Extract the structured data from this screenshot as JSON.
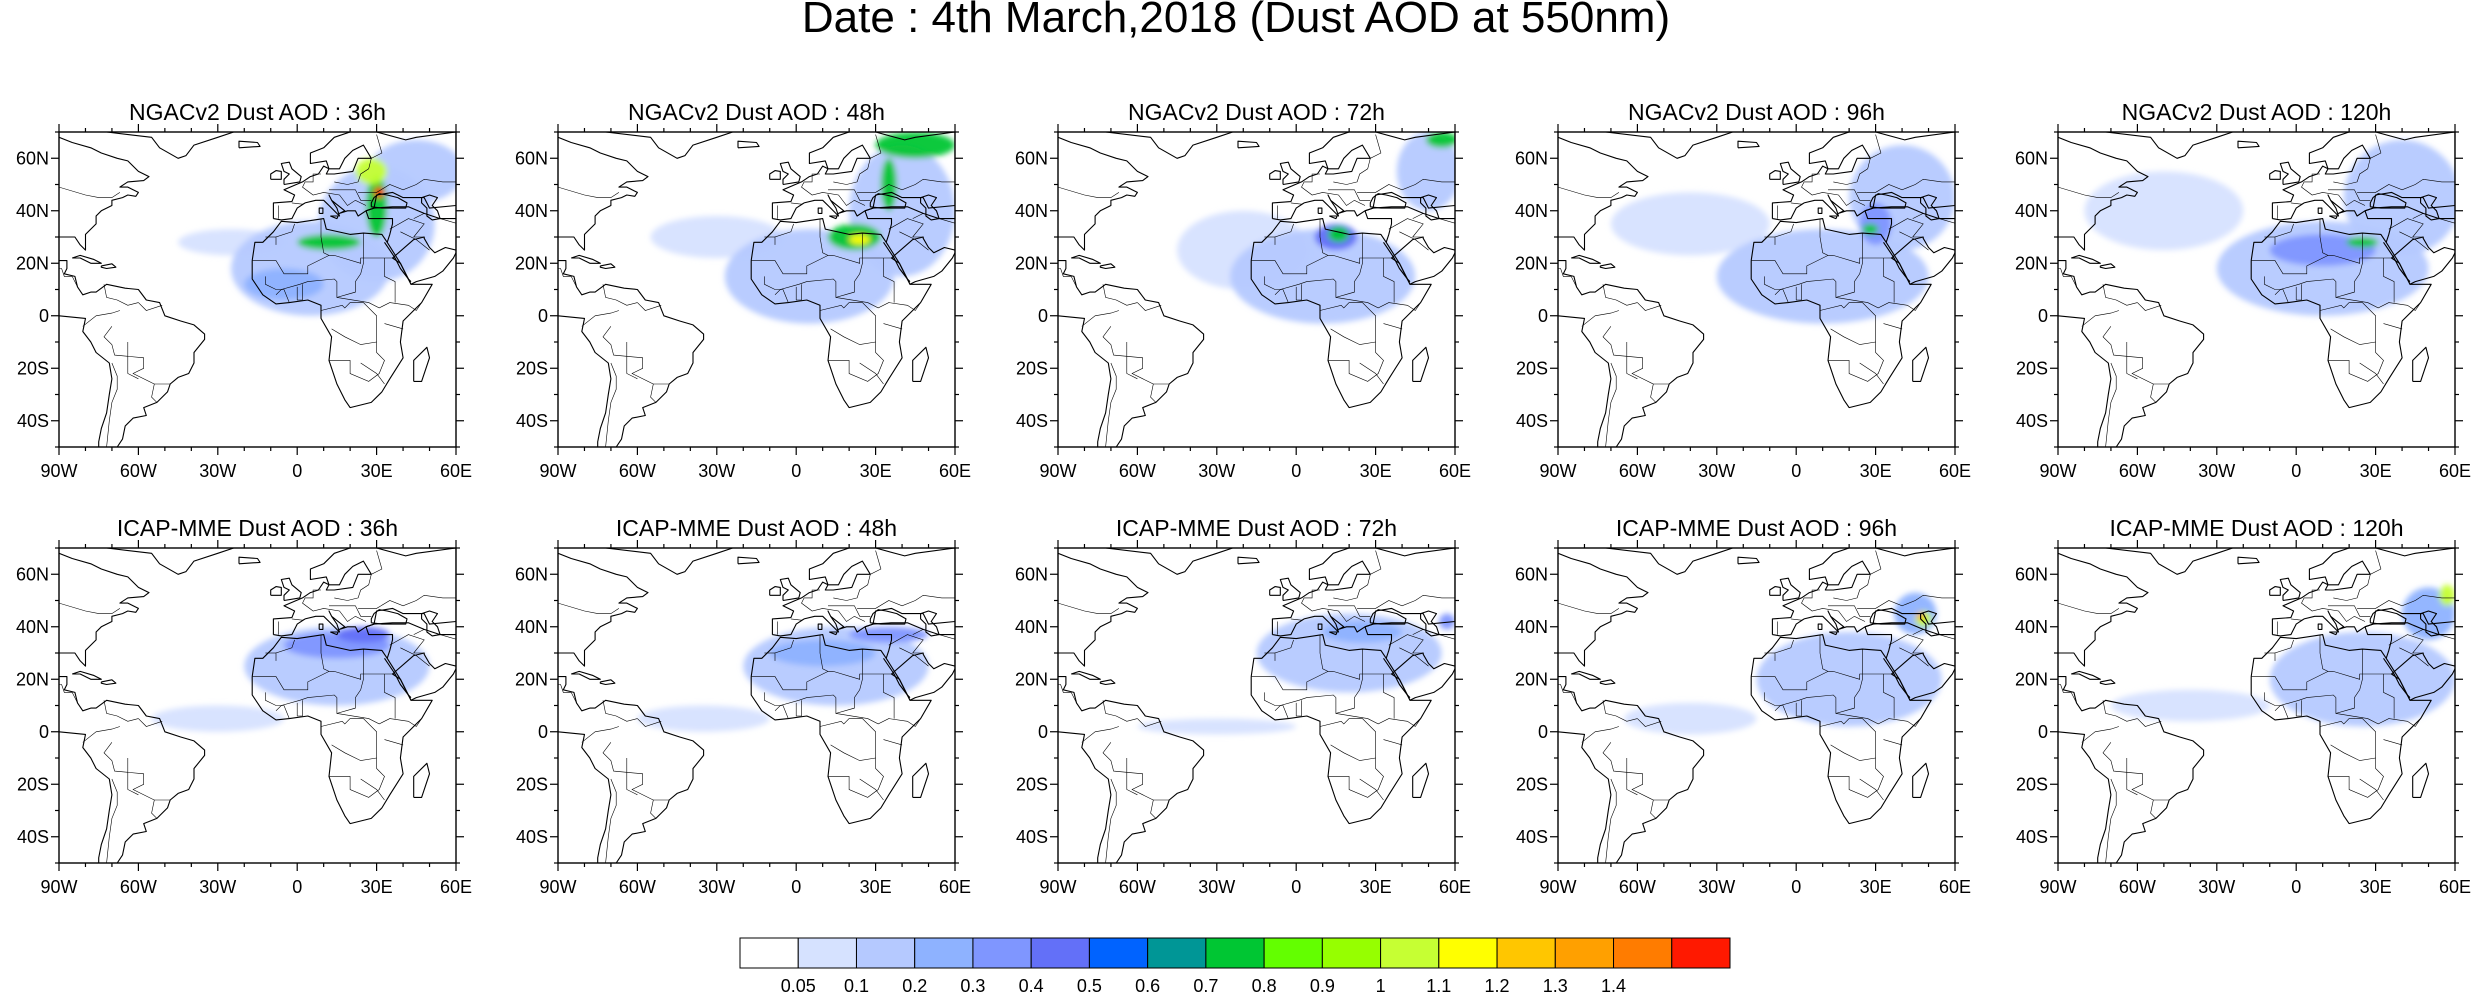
{
  "title": "Date : 4th March,2018 (Dust AOD at 550nm)",
  "lon_ticks": [
    "90W",
    "60W",
    "30W",
    "0",
    "30E",
    "60E"
  ],
  "lat_ticks": [
    "60N",
    "40N",
    "20N",
    "0",
    "20S",
    "40S"
  ],
  "map_extent": {
    "lon": [
      -90,
      60
    ],
    "lat": [
      -50,
      70
    ]
  },
  "colorbar": {
    "labels": [
      "0.05",
      "0.1",
      "0.2",
      "0.3",
      "0.4",
      "0.5",
      "0.6",
      "0.7",
      "0.8",
      "0.9",
      "1",
      "1.1",
      "1.2",
      "1.3",
      "1.4"
    ],
    "colors": [
      "#ffffff",
      "#d6e2ff",
      "#b5c9ff",
      "#8eb2ff",
      "#7f96ff",
      "#6370f8",
      "#0063ff",
      "#009696",
      "#00c633",
      "#63ff00",
      "#96ff00",
      "#c6ff33",
      "#ffff00",
      "#ffc600",
      "#ffa000",
      "#ff7c00",
      "#ff1900"
    ]
  },
  "panels": [
    {
      "title": "NGACv2 Dust AOD : 36h",
      "dust": [
        {
          "lon": -25,
          "lat": 28,
          "rlon": 20,
          "rlat": 5,
          "level": 1
        },
        {
          "lon": 5,
          "lat": 18,
          "rlon": 30,
          "rlat": 18,
          "level": 2
        },
        {
          "lon": 30,
          "lat": 35,
          "rlon": 22,
          "rlat": 22,
          "level": 2
        },
        {
          "lon": 45,
          "lat": 55,
          "rlon": 18,
          "rlat": 12,
          "level": 2
        },
        {
          "lon": -5,
          "lat": 12,
          "rlon": 15,
          "rlat": 6,
          "level": 3
        },
        {
          "lon": 12,
          "lat": 28,
          "rlon": 12,
          "rlat": 3,
          "level": 8
        },
        {
          "lon": 30,
          "lat": 42,
          "rlon": 4,
          "rlat": 12,
          "level": 8
        },
        {
          "lon": 28,
          "lat": 55,
          "rlon": 6,
          "rlat": 5,
          "level": 11
        },
        {
          "lon": 31,
          "lat": 47,
          "rlon": 2,
          "rlat": 2,
          "level": 16
        }
      ]
    },
    {
      "title": "NGACv2 Dust AOD : 48h",
      "dust": [
        {
          "lon": -30,
          "lat": 30,
          "rlon": 25,
          "rlat": 8,
          "level": 1
        },
        {
          "lon": 5,
          "lat": 15,
          "rlon": 32,
          "rlat": 18,
          "level": 2
        },
        {
          "lon": 40,
          "lat": 40,
          "rlon": 20,
          "rlat": 25,
          "level": 2
        },
        {
          "lon": 45,
          "lat": 65,
          "rlon": 15,
          "rlat": 5,
          "level": 8
        },
        {
          "lon": 22,
          "lat": 30,
          "rlon": 10,
          "rlat": 5,
          "level": 8
        },
        {
          "lon": 35,
          "lat": 50,
          "rlon": 3,
          "rlat": 10,
          "level": 8
        },
        {
          "lon": 24,
          "lat": 29,
          "rlon": 4,
          "rlat": 2,
          "level": 12
        }
      ]
    },
    {
      "title": "NGACv2 Dust AOD : 72h",
      "dust": [
        {
          "lon": -20,
          "lat": 25,
          "rlon": 25,
          "rlat": 15,
          "level": 1
        },
        {
          "lon": 10,
          "lat": 15,
          "rlon": 35,
          "rlat": 18,
          "level": 2
        },
        {
          "lon": 50,
          "lat": 55,
          "rlon": 12,
          "rlat": 15,
          "level": 2
        },
        {
          "lon": 15,
          "lat": 30,
          "rlon": 8,
          "rlat": 5,
          "level": 5
        },
        {
          "lon": 16,
          "lat": 31,
          "rlon": 4,
          "rlat": 3,
          "level": 8
        },
        {
          "lon": 55,
          "lat": 67,
          "rlon": 6,
          "rlat": 3,
          "level": 8
        }
      ]
    },
    {
      "title": "NGACv2 Dust AOD : 96h",
      "dust": [
        {
          "lon": -40,
          "lat": 35,
          "rlon": 30,
          "rlat": 12,
          "level": 1
        },
        {
          "lon": 10,
          "lat": 15,
          "rlon": 40,
          "rlat": 18,
          "level": 2
        },
        {
          "lon": 40,
          "lat": 45,
          "rlon": 20,
          "rlat": 20,
          "level": 2
        },
        {
          "lon": 30,
          "lat": 35,
          "rlon": 6,
          "rlat": 8,
          "level": 4
        },
        {
          "lon": 28,
          "lat": 33,
          "rlon": 3,
          "rlat": 2,
          "level": 8
        }
      ]
    },
    {
      "title": "NGACv2 Dust AOD : 120h",
      "dust": [
        {
          "lon": -50,
          "lat": 40,
          "rlon": 30,
          "rlat": 15,
          "level": 1
        },
        {
          "lon": 10,
          "lat": 18,
          "rlon": 40,
          "rlat": 18,
          "level": 2
        },
        {
          "lon": 40,
          "lat": 45,
          "rlon": 22,
          "rlat": 22,
          "level": 2
        },
        {
          "lon": 10,
          "lat": 25,
          "rlon": 20,
          "rlat": 6,
          "level": 4
        },
        {
          "lon": 25,
          "lat": 28,
          "rlon": 6,
          "rlat": 2,
          "level": 8
        }
      ]
    },
    {
      "title": "ICAP-MME Dust AOD : 36h",
      "dust": [
        {
          "lon": -30,
          "lat": 5,
          "rlon": 25,
          "rlat": 5,
          "level": 1
        },
        {
          "lon": 15,
          "lat": 25,
          "rlon": 35,
          "rlat": 15,
          "level": 2
        },
        {
          "lon": 15,
          "lat": 33,
          "rlon": 20,
          "rlat": 5,
          "level": 4
        },
        {
          "lon": 25,
          "lat": 37,
          "rlon": 10,
          "rlat": 3,
          "level": 5
        }
      ]
    },
    {
      "title": "ICAP-MME Dust AOD : 48h",
      "dust": [
        {
          "lon": -35,
          "lat": 5,
          "rlon": 25,
          "rlat": 5,
          "level": 1
        },
        {
          "lon": 15,
          "lat": 25,
          "rlon": 35,
          "rlat": 15,
          "level": 2
        },
        {
          "lon": 10,
          "lat": 30,
          "rlon": 20,
          "rlat": 5,
          "level": 3
        },
        {
          "lon": 35,
          "lat": 37,
          "rlon": 15,
          "rlat": 3,
          "level": 4
        }
      ]
    },
    {
      "title": "ICAP-MME Dust AOD : 72h",
      "dust": [
        {
          "lon": -30,
          "lat": 2,
          "rlon": 30,
          "rlat": 3,
          "level": 1
        },
        {
          "lon": 20,
          "lat": 30,
          "rlon": 35,
          "rlat": 15,
          "level": 2
        },
        {
          "lon": 25,
          "lat": 38,
          "rlon": 15,
          "rlat": 4,
          "level": 3
        },
        {
          "lon": 57,
          "lat": 42,
          "rlon": 3,
          "rlat": 3,
          "level": 4
        }
      ]
    },
    {
      "title": "ICAP-MME Dust AOD : 96h",
      "dust": [
        {
          "lon": -40,
          "lat": 5,
          "rlon": 25,
          "rlat": 6,
          "level": 1
        },
        {
          "lon": 20,
          "lat": 20,
          "rlon": 35,
          "rlat": 18,
          "level": 2
        },
        {
          "lon": 45,
          "lat": 45,
          "rlon": 8,
          "rlat": 8,
          "level": 3
        },
        {
          "lon": 48,
          "lat": 43,
          "rlon": 3,
          "rlat": 3,
          "level": 11
        },
        {
          "lon": 47,
          "lat": 44,
          "rlon": 1.5,
          "rlat": 1.5,
          "level": 14
        }
      ]
    },
    {
      "title": "ICAP-MME Dust AOD : 120h",
      "dust": [
        {
          "lon": -40,
          "lat": 10,
          "rlon": 30,
          "rlat": 6,
          "level": 1
        },
        {
          "lon": 25,
          "lat": 20,
          "rlon": 35,
          "rlat": 18,
          "level": 2
        },
        {
          "lon": 50,
          "lat": 45,
          "rlon": 10,
          "rlat": 10,
          "level": 3
        },
        {
          "lon": 57,
          "lat": 52,
          "rlon": 3,
          "rlat": 4,
          "level": 11
        }
      ]
    }
  ]
}
